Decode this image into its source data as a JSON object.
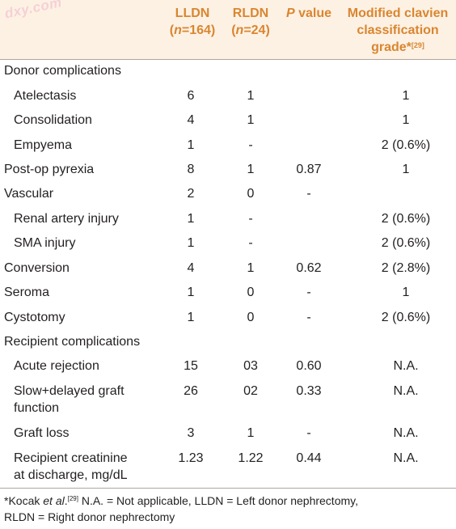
{
  "watermark": "dxy.com",
  "header": {
    "col1": {
      "line1": "LLDN",
      "line2_n": "n",
      "line2_val": "=164)",
      "line2_open": "("
    },
    "col2": {
      "line1": "RLDN",
      "line2_n": "n",
      "line2_val": "=24)",
      "line2_open": "("
    },
    "col3": {
      "italic": "P",
      "rest": " value"
    },
    "col4": {
      "line1": "Modified clavien",
      "line2": "classification",
      "line3": "grade",
      "line3_mark": "*",
      "line3_ref": "[29]"
    }
  },
  "rows": [
    {
      "label": "Donor complications",
      "indent": false,
      "c1": "",
      "c2": "",
      "c3": "",
      "c4": ""
    },
    {
      "label": "Atelectasis",
      "indent": true,
      "c1": "6",
      "c2": "1",
      "c3": "",
      "c4": "1"
    },
    {
      "label": "Consolidation",
      "indent": true,
      "c1": "4",
      "c2": "1",
      "c3": "",
      "c4": "1"
    },
    {
      "label": "Empyema",
      "indent": true,
      "c1": "1",
      "c2": "-",
      "c3": "",
      "c4": "2 (0.6%)"
    },
    {
      "label": "Post-op pyrexia",
      "indent": false,
      "c1": "8",
      "c2": "1",
      "c3": "0.87",
      "c4": "1"
    },
    {
      "label": "Vascular",
      "indent": false,
      "c1": "2",
      "c2": "0",
      "c3": "-",
      "c4": ""
    },
    {
      "label": "Renal artery injury",
      "indent": true,
      "c1": "1",
      "c2": "-",
      "c3": "",
      "c4": "2 (0.6%)"
    },
    {
      "label": "SMA injury",
      "indent": true,
      "c1": "1",
      "c2": "-",
      "c3": "",
      "c4": "2 (0.6%)"
    },
    {
      "label": "Conversion",
      "indent": false,
      "c1": "4",
      "c2": "1",
      "c3": "0.62",
      "c4": "2 (2.8%)"
    },
    {
      "label": "Seroma",
      "indent": false,
      "c1": "1",
      "c2": "0",
      "c3": "-",
      "c4": "1"
    },
    {
      "label": "Cystotomy",
      "indent": false,
      "c1": "1",
      "c2": "0",
      "c3": "-",
      "c4": "2 (0.6%)"
    },
    {
      "label": "Recipient complications",
      "indent": false,
      "c1": "",
      "c2": "",
      "c3": "",
      "c4": ""
    },
    {
      "label": "Acute rejection",
      "indent": true,
      "c1": "15",
      "c2": "03",
      "c3": "0.60",
      "c4": "N.A."
    },
    {
      "label": "Slow+delayed graft",
      "label2": "function",
      "indent": true,
      "c1": "26",
      "c2": "02",
      "c3": "0.33",
      "c4": "N.A."
    },
    {
      "label": "Graft loss",
      "indent": true,
      "c1": "3",
      "c2": "1",
      "c3": "-",
      "c4": "N.A."
    },
    {
      "label": "Recipient creatinine",
      "label2": "at discharge, mg/dL",
      "indent": true,
      "c1": "1.23",
      "c2": "1.22",
      "c3": "0.44",
      "c4": "N.A."
    }
  ],
  "footnote": {
    "star": "*Kocak ",
    "etal": "et al",
    "dot": ".",
    "ref": "[29]",
    "line1_rest": " N.A. = Not applicable, LLDN = Left donor nephrectomy,",
    "line2": "RLDN = Right donor nephrectomy"
  }
}
